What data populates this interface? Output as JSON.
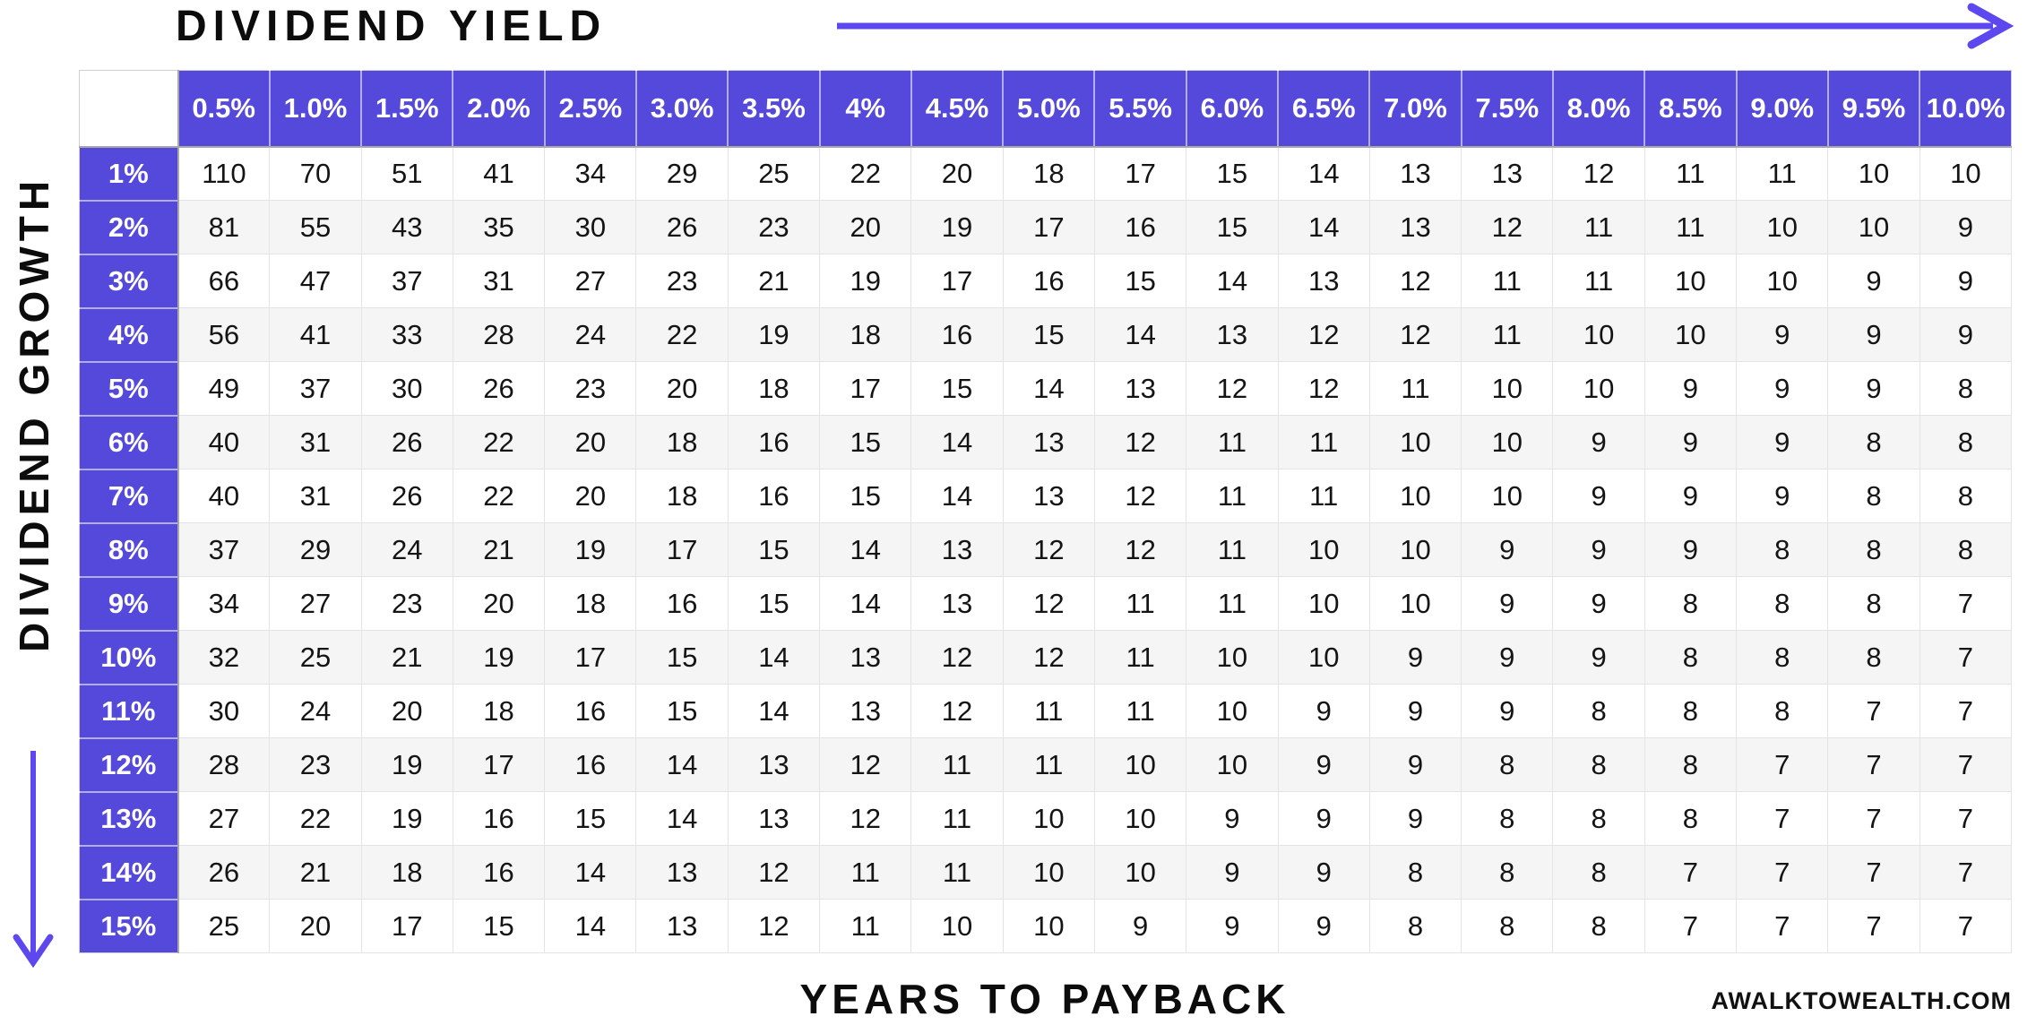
{
  "colors": {
    "header_purple": "#5449DB",
    "arrow_purple": "#5C48EE",
    "alt_row_bg": "#f5f5f6",
    "grid_line": "#e4e4e4",
    "text_dark": "#0c0c0c"
  },
  "axis_top": {
    "label": "DIVIDEND YIELD"
  },
  "axis_left": {
    "label": "DIVIDEND GROWTH"
  },
  "axis_bottom": {
    "label": "YEARS TO PAYBACK"
  },
  "branding": {
    "site": "AWALKTOWEALTH.COM"
  },
  "chart_data": {
    "type": "table",
    "title": "Years to Payback",
    "columns_axis_label": "Dividend Yield",
    "rows_axis_label": "Dividend Growth",
    "columns": [
      "0.5%",
      "1.0%",
      "1.5%",
      "2.0%",
      "2.5%",
      "3.0%",
      "3.5%",
      "4%",
      "4.5%",
      "5.0%",
      "5.5%",
      "6.0%",
      "6.5%",
      "7.0%",
      "7.5%",
      "8.0%",
      "8.5%",
      "9.0%",
      "9.5%",
      "10.0%"
    ],
    "rows": [
      {
        "label": "1%",
        "values": [
          110,
          70,
          51,
          41,
          34,
          29,
          25,
          22,
          20,
          18,
          17,
          15,
          14,
          13,
          13,
          12,
          11,
          11,
          10,
          10
        ]
      },
      {
        "label": "2%",
        "values": [
          81,
          55,
          43,
          35,
          30,
          26,
          23,
          20,
          19,
          17,
          16,
          15,
          14,
          13,
          12,
          11,
          11,
          10,
          10,
          9
        ]
      },
      {
        "label": "3%",
        "values": [
          66,
          47,
          37,
          31,
          27,
          23,
          21,
          19,
          17,
          16,
          15,
          14,
          13,
          12,
          11,
          11,
          10,
          10,
          9,
          9
        ]
      },
      {
        "label": "4%",
        "values": [
          56,
          41,
          33,
          28,
          24,
          22,
          19,
          18,
          16,
          15,
          14,
          13,
          12,
          12,
          11,
          10,
          10,
          9,
          9,
          9
        ]
      },
      {
        "label": "5%",
        "values": [
          49,
          37,
          30,
          26,
          23,
          20,
          18,
          17,
          15,
          14,
          13,
          12,
          12,
          11,
          10,
          10,
          9,
          9,
          9,
          8
        ]
      },
      {
        "label": "6%",
        "values": [
          40,
          31,
          26,
          22,
          20,
          18,
          16,
          15,
          14,
          13,
          12,
          11,
          11,
          10,
          10,
          9,
          9,
          9,
          8,
          8
        ]
      },
      {
        "label": "7%",
        "values": [
          40,
          31,
          26,
          22,
          20,
          18,
          16,
          15,
          14,
          13,
          12,
          11,
          11,
          10,
          10,
          9,
          9,
          9,
          8,
          8
        ]
      },
      {
        "label": "8%",
        "values": [
          37,
          29,
          24,
          21,
          19,
          17,
          15,
          14,
          13,
          12,
          12,
          11,
          10,
          10,
          9,
          9,
          9,
          8,
          8,
          8
        ]
      },
      {
        "label": "9%",
        "values": [
          34,
          27,
          23,
          20,
          18,
          16,
          15,
          14,
          13,
          12,
          11,
          11,
          10,
          10,
          9,
          9,
          8,
          8,
          8,
          7
        ]
      },
      {
        "label": "10%",
        "values": [
          32,
          25,
          21,
          19,
          17,
          15,
          14,
          13,
          12,
          12,
          11,
          10,
          10,
          9,
          9,
          9,
          8,
          8,
          8,
          7
        ]
      },
      {
        "label": "11%",
        "values": [
          30,
          24,
          20,
          18,
          16,
          15,
          14,
          13,
          12,
          11,
          11,
          10,
          9,
          9,
          9,
          8,
          8,
          8,
          7,
          7
        ]
      },
      {
        "label": "12%",
        "values": [
          28,
          23,
          19,
          17,
          16,
          14,
          13,
          12,
          11,
          11,
          10,
          10,
          9,
          9,
          8,
          8,
          8,
          7,
          7,
          7
        ]
      },
      {
        "label": "13%",
        "values": [
          27,
          22,
          19,
          16,
          15,
          14,
          13,
          12,
          11,
          10,
          10,
          9,
          9,
          9,
          8,
          8,
          8,
          7,
          7,
          7
        ]
      },
      {
        "label": "14%",
        "values": [
          26,
          21,
          18,
          16,
          14,
          13,
          12,
          11,
          11,
          10,
          10,
          9,
          9,
          8,
          8,
          8,
          7,
          7,
          7,
          7
        ]
      },
      {
        "label": "15%",
        "values": [
          25,
          20,
          17,
          15,
          14,
          13,
          12,
          11,
          10,
          10,
          9,
          9,
          9,
          8,
          8,
          8,
          7,
          7,
          7,
          7
        ]
      }
    ]
  }
}
